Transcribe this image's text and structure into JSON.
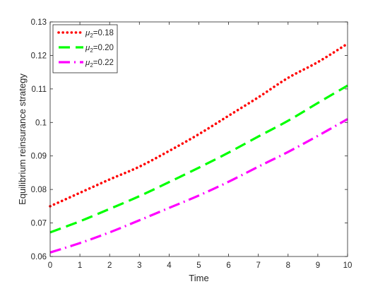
{
  "chart_data": {
    "type": "line",
    "xlabel": "Time",
    "ylabel": "Equilibrium reinsurance strategy",
    "xlim": [
      0,
      10
    ],
    "ylim": [
      0.06,
      0.13
    ],
    "xticks": [
      0,
      1,
      2,
      3,
      4,
      5,
      6,
      7,
      8,
      9,
      10
    ],
    "yticks": [
      0.06,
      0.07,
      0.08,
      0.09,
      0.1,
      0.11,
      0.12,
      0.13
    ],
    "xtick_labels": [
      "0",
      "1",
      "2",
      "3",
      "4",
      "5",
      "6",
      "7",
      "8",
      "9",
      "10"
    ],
    "ytick_labels": [
      "0.06",
      "0.07",
      "0.08",
      "0.09",
      "0.1",
      "0.11",
      "0.12",
      "0.13"
    ],
    "grid": false,
    "legend_position": "top-left",
    "x": [
      0,
      1,
      2,
      3,
      4,
      5,
      6,
      7,
      8,
      9,
      10
    ],
    "series": [
      {
        "name": "μ2=0.18",
        "legend_symbol": "μ",
        "legend_subscript": "2",
        "legend_value": "=0.18",
        "color": "#ff0000",
        "style": "dotted",
        "values": [
          0.075,
          0.079,
          0.083,
          0.0868,
          0.0915,
          0.0965,
          0.102,
          0.1075,
          0.1133,
          0.118,
          0.1235
        ]
      },
      {
        "name": "μ2=0.20",
        "legend_symbol": "μ",
        "legend_subscript": "2",
        "legend_value": "=0.20",
        "color": "#00ff00",
        "style": "dashed",
        "values": [
          0.0672,
          0.0705,
          0.0742,
          0.078,
          0.0822,
          0.0865,
          0.091,
          0.0958,
          0.1005,
          0.1058,
          0.111
        ]
      },
      {
        "name": "μ2=0.22",
        "legend_symbol": "μ",
        "legend_subscript": "2",
        "legend_value": "=0.22",
        "color": "#ff00ff",
        "style": "dash-dot",
        "values": [
          0.0612,
          0.064,
          0.0672,
          0.0708,
          0.0745,
          0.0782,
          0.0823,
          0.0868,
          0.0912,
          0.096,
          0.101
        ]
      }
    ]
  }
}
